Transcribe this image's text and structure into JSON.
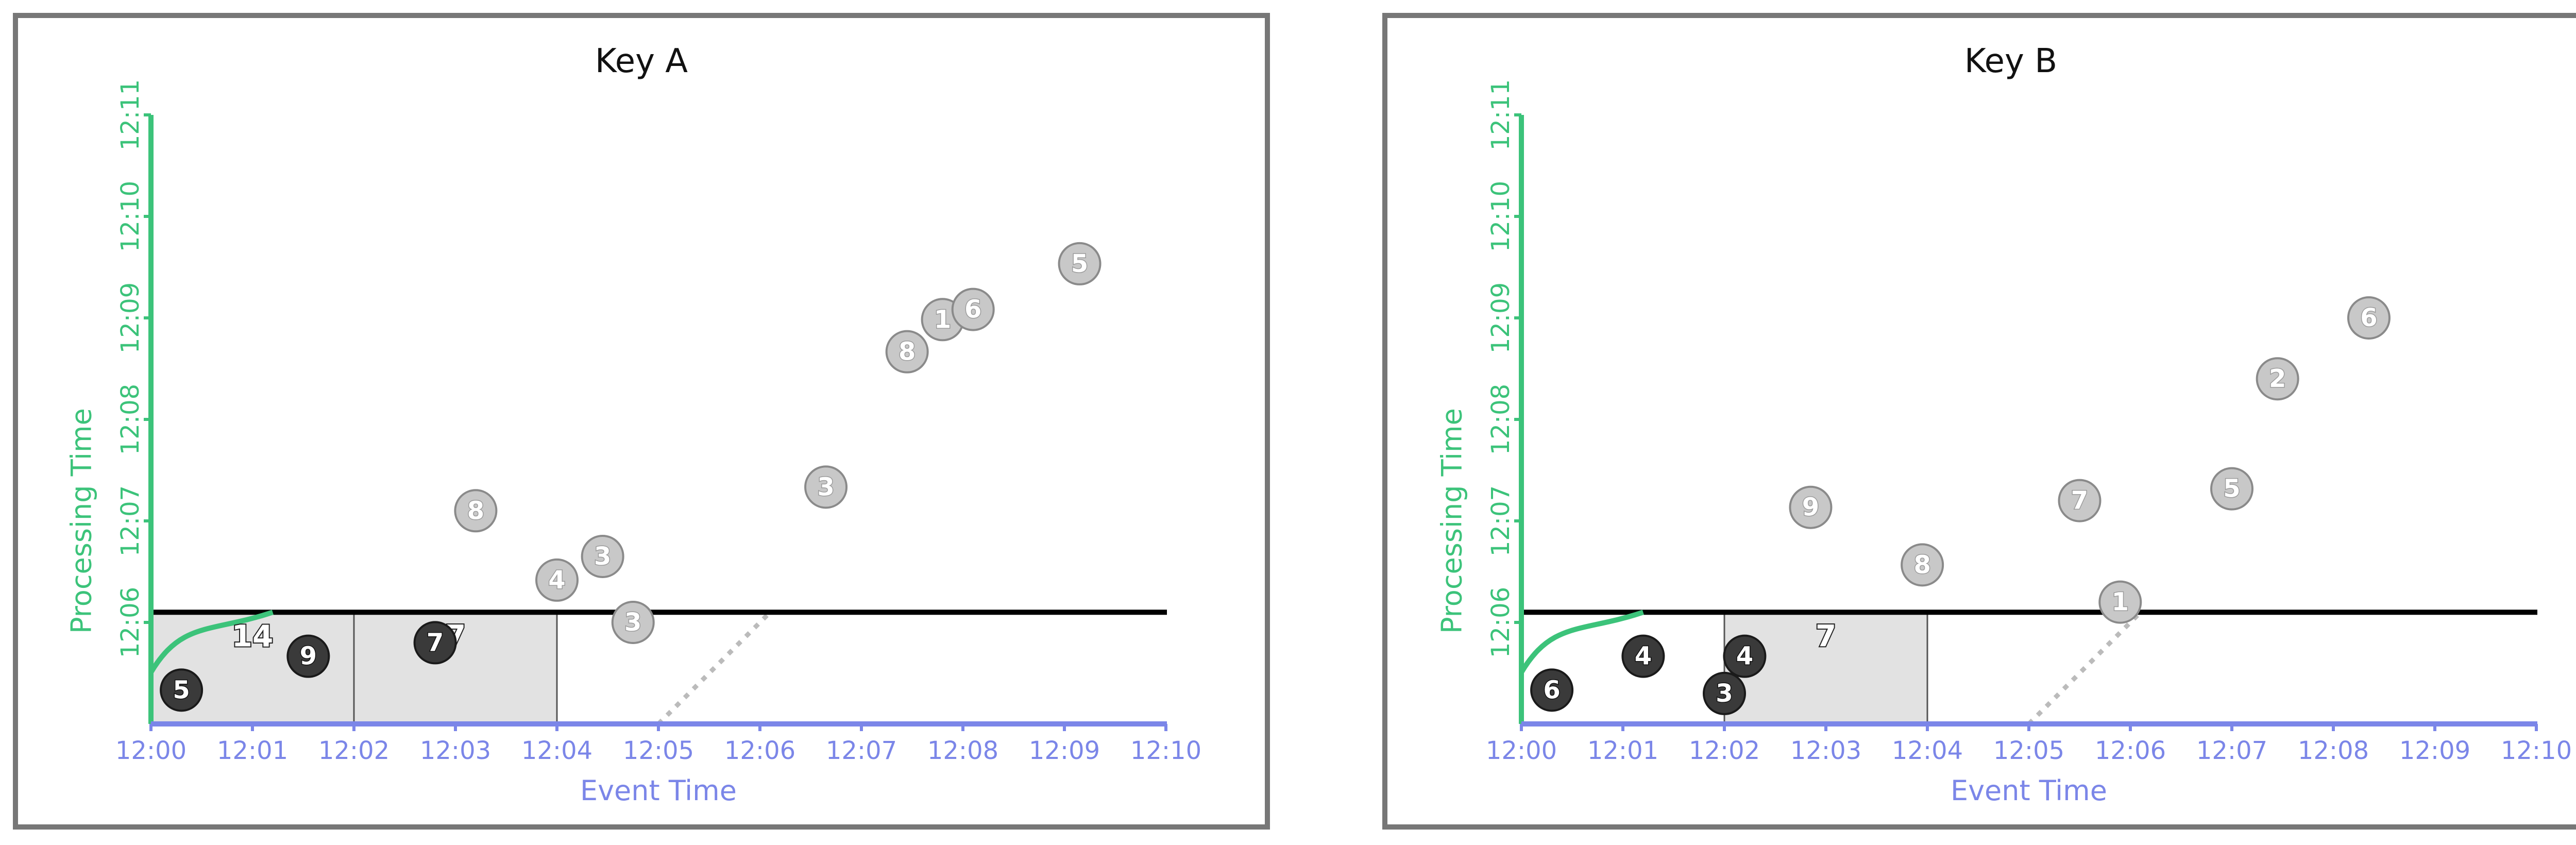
{
  "colors": {
    "x_axis": "#7b86e8",
    "y_axis": "#3cc37a",
    "frame": "#777777",
    "pane_fill": "#e2e2e2",
    "pane_stroke": "#555555",
    "watermark": "#000000",
    "late_point_fill": "#c8c8c8",
    "late_point_stroke": "#8a8a8a",
    "ontime_point_fill": "#3a3a3a",
    "ontime_point_stroke": "#1a1a1a",
    "dotted": "#bbbbbb"
  },
  "chart_data": [
    {
      "type": "scatter",
      "title": "Key A",
      "xlabel": "Event Time",
      "ylabel": "Processing Time",
      "xticks": [
        "12:00",
        "12:01",
        "12:02",
        "12:03",
        "12:04",
        "12:05",
        "12:06",
        "12:07",
        "12:08",
        "12:09",
        "12:10"
      ],
      "yticks": [
        "12:06",
        "12:07",
        "12:08",
        "12:09",
        "12:10",
        "12:11"
      ],
      "xlim": [
        "12:00",
        "12:10"
      ],
      "ylim": [
        "12:05",
        "12:11"
      ],
      "watermark_y": "12:06:06",
      "watermark_curve_end_x": "12:01:12",
      "panes": [
        {
          "x_start": "12:00",
          "x_end": "12:02",
          "y_top": "12:06:06"
        },
        {
          "x_start": "12:02",
          "x_end": "12:04",
          "y_top": "12:06:06"
        }
      ],
      "pane_labels": [
        {
          "text": "14",
          "x": "12:01",
          "y": "12:05:52"
        },
        {
          "text": "7",
          "x": "12:03",
          "y": "12:05:52"
        }
      ],
      "dotted_line": {
        "from": [
          "12:05",
          "12:05"
        ],
        "to": [
          "12:06:06",
          "12:06:06"
        ]
      },
      "points": [
        {
          "label": "5",
          "x": "12:00:18",
          "y": "12:05:20",
          "state": "on-time"
        },
        {
          "label": "9",
          "x": "12:01:33",
          "y": "12:05:40",
          "state": "on-time"
        },
        {
          "label": "7",
          "x": "12:02:48",
          "y": "12:05:48",
          "state": "on-time"
        },
        {
          "label": "3",
          "x": "12:04:45",
          "y": "12:06:00",
          "state": "late"
        },
        {
          "label": "4",
          "x": "12:04:00",
          "y": "12:06:25",
          "state": "late"
        },
        {
          "label": "3",
          "x": "12:04:27",
          "y": "12:06:39",
          "state": "late"
        },
        {
          "label": "8",
          "x": "12:03:12",
          "y": "12:07:06",
          "state": "late"
        },
        {
          "label": "3",
          "x": "12:06:39",
          "y": "12:07:20",
          "state": "late"
        },
        {
          "label": "8",
          "x": "12:07:27",
          "y": "12:08:40",
          "state": "late"
        },
        {
          "label": "1",
          "x": "12:07:48",
          "y": "12:08:59",
          "state": "late"
        },
        {
          "label": "6",
          "x": "12:08:06",
          "y": "12:09:05",
          "state": "late"
        },
        {
          "label": "5",
          "x": "12:09:09",
          "y": "12:09:32",
          "state": "late"
        }
      ]
    },
    {
      "type": "scatter",
      "title": "Key B",
      "xlabel": "Event Time",
      "ylabel": "Processing Time",
      "xticks": [
        "12:00",
        "12:01",
        "12:02",
        "12:03",
        "12:04",
        "12:05",
        "12:06",
        "12:07",
        "12:08",
        "12:09",
        "12:10"
      ],
      "yticks": [
        "12:06",
        "12:07",
        "12:08",
        "12:09",
        "12:10",
        "12:11"
      ],
      "xlim": [
        "12:00",
        "12:10"
      ],
      "ylim": [
        "12:05",
        "12:11"
      ],
      "watermark_y": "12:06:06",
      "watermark_curve_end_x": "12:01:12",
      "panes": [
        {
          "x_start": "12:02",
          "x_end": "12:04",
          "y_top": "12:06:06"
        }
      ],
      "pane_labels": [
        {
          "text": "7",
          "x": "12:03",
          "y": "12:05:52"
        }
      ],
      "dotted_line": {
        "from": [
          "12:05",
          "12:05"
        ],
        "to": [
          "12:06:06",
          "12:06:06"
        ]
      },
      "points": [
        {
          "label": "6",
          "x": "12:00:18",
          "y": "12:05:20",
          "state": "on-time"
        },
        {
          "label": "4",
          "x": "12:01:12",
          "y": "12:05:40",
          "state": "on-time"
        },
        {
          "label": "4",
          "x": "12:02:12",
          "y": "12:05:40",
          "state": "on-time"
        },
        {
          "label": "3",
          "x": "12:02:00",
          "y": "12:05:18",
          "state": "on-time"
        },
        {
          "label": "9",
          "x": "12:02:51",
          "y": "12:07:08",
          "state": "late"
        },
        {
          "label": "8",
          "x": "12:03:57",
          "y": "12:06:34",
          "state": "late"
        },
        {
          "label": "7",
          "x": "12:05:30",
          "y": "12:07:12",
          "state": "late"
        },
        {
          "label": "1",
          "x": "12:05:54",
          "y": "12:06:12",
          "state": "late"
        },
        {
          "label": "5",
          "x": "12:07:00",
          "y": "12:07:19",
          "state": "late"
        },
        {
          "label": "2",
          "x": "12:07:27",
          "y": "12:08:24",
          "state": "late"
        },
        {
          "label": "6",
          "x": "12:08:21",
          "y": "12:09:00",
          "state": "late"
        }
      ]
    }
  ]
}
